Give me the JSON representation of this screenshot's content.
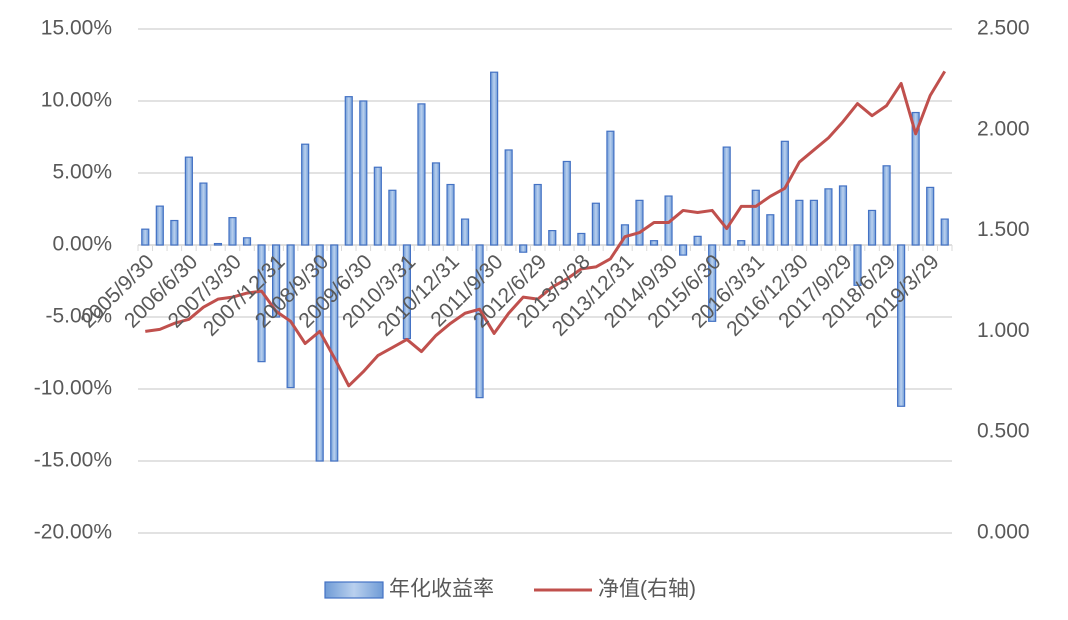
{
  "chart_data": {
    "type": "bar-line",
    "categories": [
      "2005/9/30",
      null,
      null,
      "2006/6/30",
      null,
      null,
      "2007/3/30",
      null,
      null,
      "2007/12/31",
      null,
      null,
      "2008/9/30",
      null,
      null,
      "2009/6/30",
      null,
      null,
      "2010/3/31",
      null,
      null,
      "2010/12/31",
      null,
      null,
      "2011/9/30",
      null,
      null,
      "2012/6/29",
      null,
      null,
      "2013/3/28",
      null,
      null,
      "2013/12/31",
      null,
      null,
      "2014/9/30",
      null,
      null,
      "2015/6/30",
      null,
      null,
      "2016/3/31",
      null,
      null,
      "2016/12/30",
      null,
      null,
      "2017/9/29",
      null,
      null,
      "2018/6/29",
      null,
      null,
      "2019/3/29",
      null
    ],
    "series": [
      {
        "name": "年化收益率",
        "type": "bar",
        "color": "#8eb4e3",
        "values": [
          1.1,
          2.7,
          1.7,
          6.1,
          4.3,
          0.1,
          1.9,
          0.5,
          -8.1,
          -5.0,
          -9.9,
          7.0,
          -15.0,
          -15.0,
          10.3,
          10.0,
          5.4,
          3.8,
          -6.5,
          9.8,
          5.7,
          4.2,
          1.8,
          -10.6,
          12.0,
          6.6,
          -0.5,
          4.2,
          1.0,
          5.8,
          0.8,
          2.9,
          7.9,
          1.4,
          3.1,
          0.3,
          3.4,
          -0.7,
          0.6,
          -5.3,
          6.8,
          0.3,
          3.8,
          2.1,
          7.2,
          3.1,
          3.1,
          3.9,
          4.1,
          -2.8,
          2.4,
          5.5,
          -11.2,
          9.2,
          4.0,
          1.8
        ]
      },
      {
        "name": "净值(右轴)",
        "type": "line",
        "axis": "y2",
        "color": "#c0504d",
        "values": [
          1.0,
          1.01,
          1.04,
          1.06,
          1.12,
          1.16,
          1.17,
          1.19,
          1.2,
          1.1,
          1.05,
          0.94,
          1.0,
          0.87,
          0.73,
          0.8,
          0.88,
          0.92,
          0.96,
          0.9,
          0.98,
          1.04,
          1.09,
          1.11,
          0.99,
          1.09,
          1.17,
          1.16,
          1.22,
          1.26,
          1.31,
          1.32,
          1.36,
          1.47,
          1.49,
          1.54,
          1.54,
          1.6,
          1.59,
          1.6,
          1.51,
          1.62,
          1.62,
          1.67,
          1.71,
          1.84,
          1.9,
          1.96,
          2.04,
          2.13,
          2.07,
          2.12,
          2.23,
          1.98,
          2.17,
          2.29
        ]
      }
    ],
    "ylim": [
      -20,
      15
    ],
    "yticks": [
      {
        "value": -20,
        "label": "-20.00%"
      },
      {
        "value": -15,
        "label": "-15.00%"
      },
      {
        "value": -10,
        "label": "-10.00%"
      },
      {
        "value": -5,
        "label": "-5.00%"
      },
      {
        "value": 0,
        "label": "0.00%"
      },
      {
        "value": 5,
        "label": "5.00%"
      },
      {
        "value": 10,
        "label": "10.00%"
      },
      {
        "value": 15,
        "label": "15.00%"
      }
    ],
    "y2lim": [
      0,
      2.5
    ],
    "y2ticks": [
      {
        "value": 0,
        "label": "0.000"
      },
      {
        "value": 0.5,
        "label": "0.500"
      },
      {
        "value": 1,
        "label": "1.000"
      },
      {
        "value": 1.5,
        "label": "1.500"
      },
      {
        "value": 2,
        "label": "2.000"
      },
      {
        "value": 2.5,
        "label": "2.500"
      }
    ],
    "grid": true,
    "legend": "bottom"
  }
}
